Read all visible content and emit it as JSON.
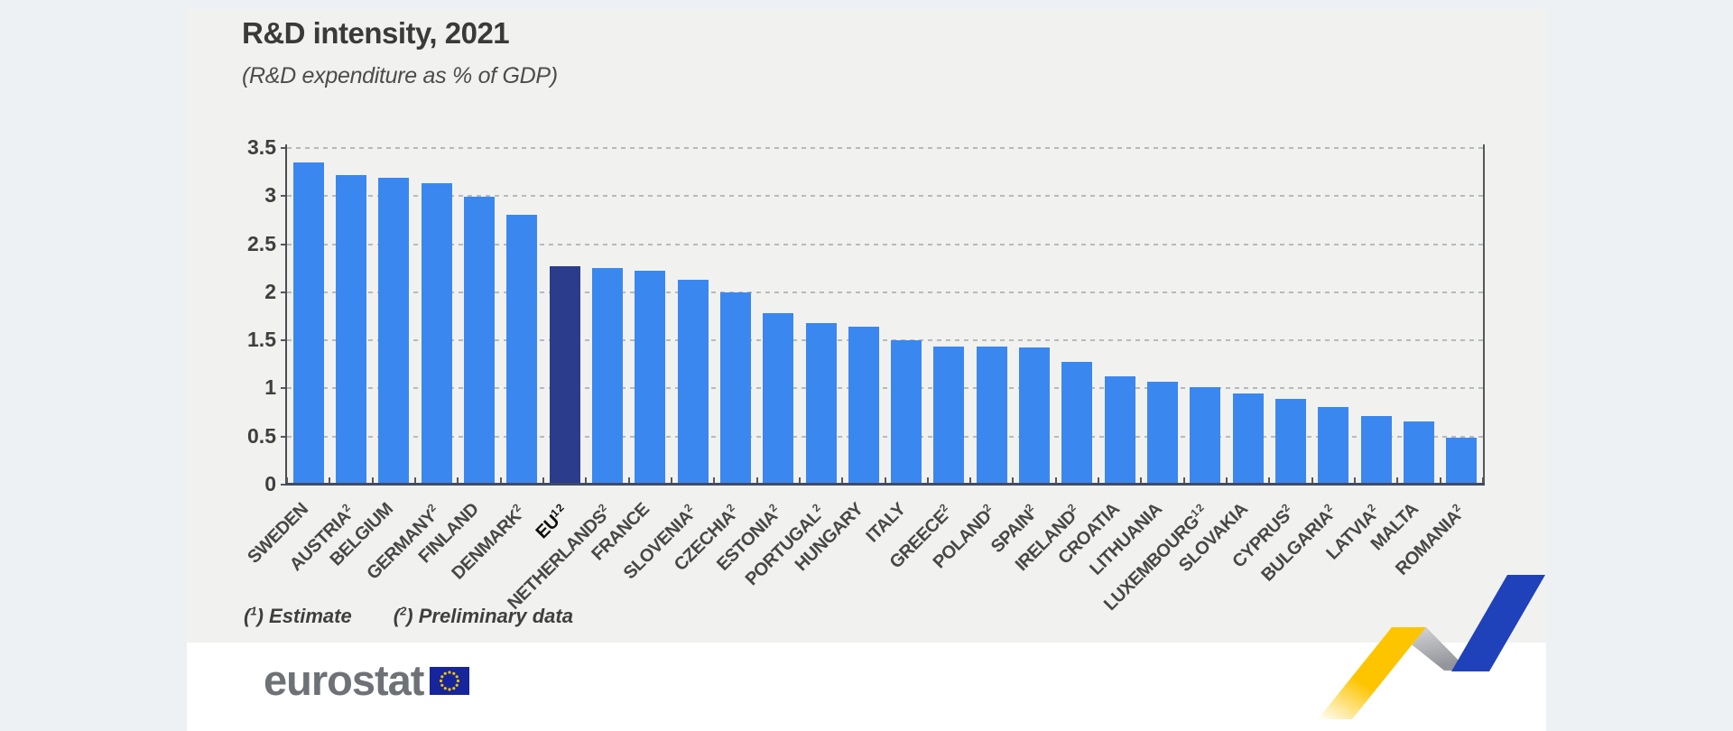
{
  "page": {
    "background": "#edf1f3",
    "panel_background": "#f1f2ef",
    "footer_background": "#ffffff"
  },
  "header": {
    "title": "R&D intensity, 2021",
    "subtitle": "(R&D expenditure as % of GDP)"
  },
  "chart_data": {
    "type": "bar",
    "title": "R&D intensity, 2021",
    "subtitle": "(R&D expenditure as % of GDP)",
    "xlabel": "",
    "ylabel": "R&D expenditure as % of GDP",
    "ylim": [
      0,
      3.5
    ],
    "ytick_step": 0.5,
    "ytick_labels": [
      "3.5",
      "3",
      "2.5",
      "2",
      "1.5",
      "1",
      "0.5",
      "0"
    ],
    "grid": "horizontal-dashed",
    "legend": "none",
    "bar_color": "#3b87f0",
    "highlight_bar_color": "#2b3c8c",
    "categories": [
      {
        "label": "SWEDEN",
        "sup": "",
        "value": 3.35,
        "highlight": false
      },
      {
        "label": "AUSTRIA",
        "sup": "2",
        "value": 3.22,
        "highlight": false
      },
      {
        "label": "BELGIUM",
        "sup": "",
        "value": 3.19,
        "highlight": false
      },
      {
        "label": "GERMANY",
        "sup": "2",
        "value": 3.13,
        "highlight": false
      },
      {
        "label": "FINLAND",
        "sup": "",
        "value": 2.99,
        "highlight": false
      },
      {
        "label": "DENMARK",
        "sup": "2",
        "value": 2.81,
        "highlight": false
      },
      {
        "label": "EU",
        "sup": "1 2",
        "value": 2.27,
        "highlight": true
      },
      {
        "label": "NETHERLANDS",
        "sup": "2",
        "value": 2.25,
        "highlight": false
      },
      {
        "label": "FRANCE",
        "sup": "",
        "value": 2.22,
        "highlight": false
      },
      {
        "label": "SLOVENIA",
        "sup": "2",
        "value": 2.13,
        "highlight": false
      },
      {
        "label": "CZECHIA",
        "sup": "2",
        "value": 2.0,
        "highlight": false
      },
      {
        "label": "ESTONIA",
        "sup": "2",
        "value": 1.78,
        "highlight": false
      },
      {
        "label": "PORTUGAL",
        "sup": "2",
        "value": 1.68,
        "highlight": false
      },
      {
        "label": "HUNGARY",
        "sup": "",
        "value": 1.64,
        "highlight": false
      },
      {
        "label": "ITALY",
        "sup": "",
        "value": 1.5,
        "highlight": false
      },
      {
        "label": "GREECE",
        "sup": "2",
        "value": 1.44,
        "highlight": false
      },
      {
        "label": "POLAND",
        "sup": "2",
        "value": 1.44,
        "highlight": false
      },
      {
        "label": "SPAIN",
        "sup": "2",
        "value": 1.43,
        "highlight": false
      },
      {
        "label": "IRELAND",
        "sup": "2",
        "value": 1.28,
        "highlight": false
      },
      {
        "label": "CROATIA",
        "sup": "",
        "value": 1.13,
        "highlight": false
      },
      {
        "label": "LITHUANIA",
        "sup": "",
        "value": 1.07,
        "highlight": false
      },
      {
        "label": "LUXEMBOURG",
        "sup": "1 2",
        "value": 1.01,
        "highlight": false
      },
      {
        "label": "SLOVAKIA",
        "sup": "",
        "value": 0.95,
        "highlight": false
      },
      {
        "label": "CYPRUS",
        "sup": "2",
        "value": 0.89,
        "highlight": false
      },
      {
        "label": "BULGARIA",
        "sup": "2",
        "value": 0.81,
        "highlight": false
      },
      {
        "label": "LATVIA",
        "sup": "2",
        "value": 0.71,
        "highlight": false
      },
      {
        "label": "MALTA",
        "sup": "",
        "value": 0.66,
        "highlight": false
      },
      {
        "label": "ROMANIA",
        "sup": "2",
        "value": 0.49,
        "highlight": false
      }
    ]
  },
  "footnotes": {
    "estimate": {
      "marker": "1",
      "text": "Estimate"
    },
    "preliminary": {
      "marker": "2",
      "text": "Preliminary data"
    }
  },
  "footer": {
    "logo_text": "eurostat",
    "flag_color": "#16259b",
    "star_color": "#f5c400"
  },
  "decoration": {
    "ribbon_yellow": "#fdc500",
    "ribbon_gray": "#a3a4a8",
    "ribbon_blue": "#1f41ba"
  }
}
